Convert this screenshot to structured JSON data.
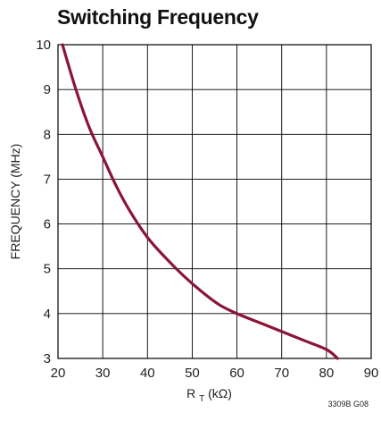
{
  "chart_data": {
    "type": "line",
    "title": "Switching Frequency",
    "xlabel": "R_T (kΩ)",
    "xlabel_main": "R",
    "xlabel_sub": "T",
    "xlabel_rest": " (kΩ)",
    "ylabel": "FREQUENCY (MHz)",
    "xlim": [
      20,
      90
    ],
    "ylim": [
      3,
      10
    ],
    "x_ticks": [
      20,
      30,
      40,
      50,
      60,
      70,
      80,
      90
    ],
    "y_ticks": [
      3,
      4,
      5,
      6,
      7,
      8,
      9,
      10
    ],
    "grid": true,
    "series": [
      {
        "color": "#8a1538",
        "x": [
          21,
          24,
          27,
          30,
          33,
          36,
          40,
          44,
          48,
          52,
          56,
          60,
          65,
          70,
          75,
          80,
          82.5
        ],
        "y": [
          10.0,
          9.0,
          8.15,
          7.5,
          6.85,
          6.3,
          5.7,
          5.25,
          4.85,
          4.5,
          4.2,
          4.0,
          3.8,
          3.6,
          3.4,
          3.2,
          3.0
        ]
      }
    ]
  },
  "figure_code": "3309B G08"
}
